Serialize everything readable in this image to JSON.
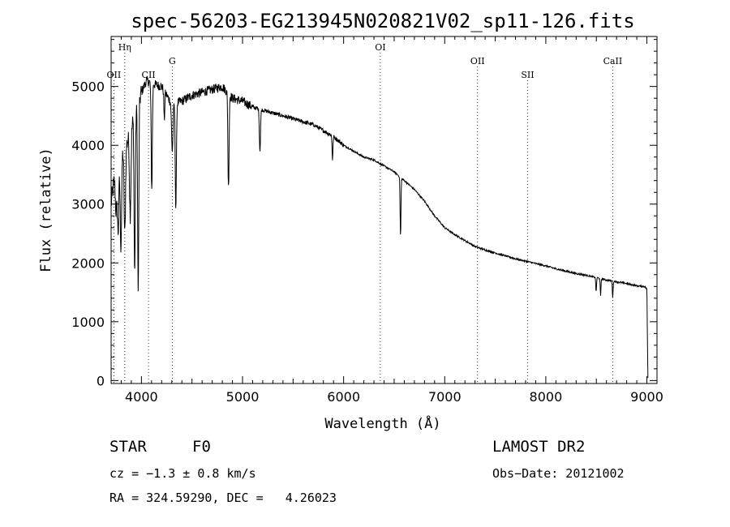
{
  "chart_data": {
    "type": "line",
    "title": "spec-56203-EG213945N020821V02_sp11-126.fits",
    "xlabel": "Wavelength (Å)",
    "ylabel": "Flux (relative)",
    "xlim": [
      3700,
      9100
    ],
    "ylim": [
      -50,
      5850
    ],
    "x_ticks": [
      4000,
      5000,
      6000,
      7000,
      8000,
      9000
    ],
    "y_ticks": [
      0,
      1000,
      2000,
      3000,
      4000,
      5000
    ],
    "grid": false,
    "line_color": "#000000",
    "lines": [
      {
        "name": "OII",
        "x": 3727,
        "label_row": 3
      },
      {
        "name": "Hη",
        "x": 3835,
        "label_row": 0
      },
      {
        "name": "CII",
        "x": 4070,
        "label_row": 3
      },
      {
        "name": "G",
        "x": 4305,
        "label_row": 1
      },
      {
        "name": "OI",
        "x": 6363,
        "label_row": 0
      },
      {
        "name": "OII",
        "x": 7325,
        "label_row": 1
      },
      {
        "name": "SII",
        "x": 7820,
        "label_row": 3
      },
      {
        "name": "CaII",
        "x": 8662,
        "label_row": 1
      }
    ],
    "spectrum_anchors": [
      [
        3700,
        3000
      ],
      [
        3750,
        3700
      ],
      [
        3800,
        3900
      ],
      [
        3850,
        4000
      ],
      [
        3900,
        4300
      ],
      [
        3950,
        4600
      ],
      [
        4000,
        4900
      ],
      [
        4050,
        5100
      ],
      [
        4100,
        5050
      ],
      [
        4200,
        5000
      ],
      [
        4300,
        4700
      ],
      [
        4400,
        4750
      ],
      [
        4500,
        4850
      ],
      [
        4600,
        4900
      ],
      [
        4700,
        4950
      ],
      [
        4800,
        5000
      ],
      [
        4900,
        4800
      ],
      [
        5000,
        4750
      ],
      [
        5100,
        4650
      ],
      [
        5200,
        4600
      ],
      [
        5300,
        4550
      ],
      [
        5400,
        4500
      ],
      [
        5500,
        4450
      ],
      [
        5600,
        4400
      ],
      [
        5700,
        4350
      ],
      [
        5800,
        4250
      ],
      [
        5900,
        4150
      ],
      [
        6000,
        4000
      ],
      [
        6100,
        3900
      ],
      [
        6200,
        3800
      ],
      [
        6300,
        3750
      ],
      [
        6400,
        3650
      ],
      [
        6500,
        3550
      ],
      [
        6600,
        3400
      ],
      [
        6700,
        3250
      ],
      [
        6800,
        3050
      ],
      [
        6900,
        2800
      ],
      [
        7000,
        2600
      ],
      [
        7100,
        2480
      ],
      [
        7200,
        2380
      ],
      [
        7300,
        2280
      ],
      [
        7400,
        2220
      ],
      [
        7500,
        2170
      ],
      [
        7600,
        2120
      ],
      [
        7700,
        2070
      ],
      [
        7800,
        2030
      ],
      [
        7900,
        1990
      ],
      [
        8000,
        1950
      ],
      [
        8100,
        1900
      ],
      [
        8200,
        1860
      ],
      [
        8300,
        1820
      ],
      [
        8400,
        1790
      ],
      [
        8500,
        1750
      ],
      [
        8600,
        1710
      ],
      [
        8700,
        1680
      ],
      [
        8800,
        1650
      ],
      [
        8900,
        1610
      ],
      [
        8980,
        1600
      ],
      [
        9000,
        1550
      ],
      [
        9010,
        50
      ]
    ],
    "absorption_features": [
      [
        3750,
        800,
        12
      ],
      [
        3770,
        1200,
        10
      ],
      [
        3797,
        1600,
        10
      ],
      [
        3835,
        1500,
        10
      ],
      [
        3889,
        1400,
        10
      ],
      [
        3933,
        2700,
        8
      ],
      [
        3968,
        3200,
        8
      ],
      [
        4102,
        1800,
        8
      ],
      [
        4226,
        500,
        6
      ],
      [
        4305,
        800,
        10
      ],
      [
        4340,
        1800,
        8
      ],
      [
        4861,
        1600,
        8
      ],
      [
        5172,
        700,
        8
      ],
      [
        5890,
        400,
        6
      ],
      [
        6563,
        1000,
        6
      ],
      [
        8498,
        250,
        5
      ],
      [
        8542,
        300,
        5
      ],
      [
        8662,
        280,
        5
      ]
    ]
  },
  "info": {
    "object_class": "STAR",
    "subclass": "F0",
    "survey": "LAMOST DR2",
    "cz": "cz = −1.3 ± 0.8 km/s",
    "obs_date": "Obs−Date: 20121002",
    "coords": "RA = 324.59290, DEC =   4.26023"
  }
}
